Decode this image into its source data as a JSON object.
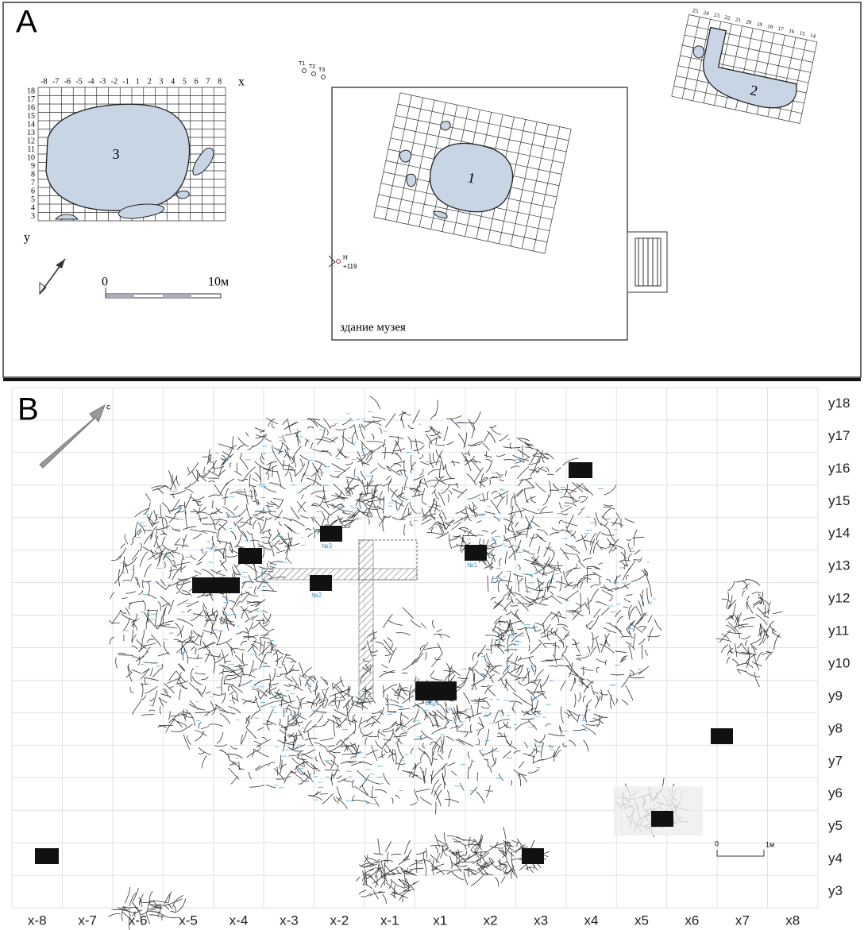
{
  "panel_a": {
    "label": "A",
    "grid_3": {
      "x_axis": "x",
      "y_axis": "y",
      "columns": [
        "-8",
        "-7",
        "-6",
        "-5",
        "-4",
        "-3",
        "-2",
        "-1",
        "1",
        "2",
        "3",
        "4",
        "5",
        "6",
        "7",
        "8"
      ],
      "rows": [
        "18",
        "17",
        "16",
        "15",
        "14",
        "13",
        "12",
        "11",
        "10",
        "9",
        "8",
        "7",
        "6",
        "5",
        "4",
        "3"
      ],
      "pit": "3"
    },
    "grid_1": {
      "pit": "1"
    },
    "grid_2": {
      "columns": [
        "25",
        "24",
        "23",
        "22",
        "21",
        "20",
        "19",
        "18",
        "17",
        "16",
        "15",
        "14"
      ],
      "pit": "2"
    },
    "markers": [
      "T1",
      "T2",
      "T3"
    ],
    "benchmark": {
      "label": "H",
      "elevation": "+119"
    },
    "scale": {
      "start": "0",
      "end": "10м"
    },
    "building": "здание музея"
  },
  "panel_b": {
    "label": "B",
    "north": "с",
    "x_labels": [
      "x-8",
      "x-7",
      "x-6",
      "x-5",
      "x-4",
      "x-3",
      "x-2",
      "x-1",
      "x1",
      "x2",
      "x3",
      "x4",
      "x5",
      "x6",
      "x7",
      "x8"
    ],
    "y_labels": [
      "y18",
      "y17",
      "y16",
      "y15",
      "y14",
      "y13",
      "y12",
      "y11",
      "y10",
      "y9",
      "y8",
      "y7",
      "y6",
      "y5",
      "y4",
      "y3"
    ],
    "square_labels": [
      "№3",
      "№1",
      "№2",
      "ОБЛ"
    ],
    "scale": {
      "start": "0",
      "end": "1м"
    }
  }
}
